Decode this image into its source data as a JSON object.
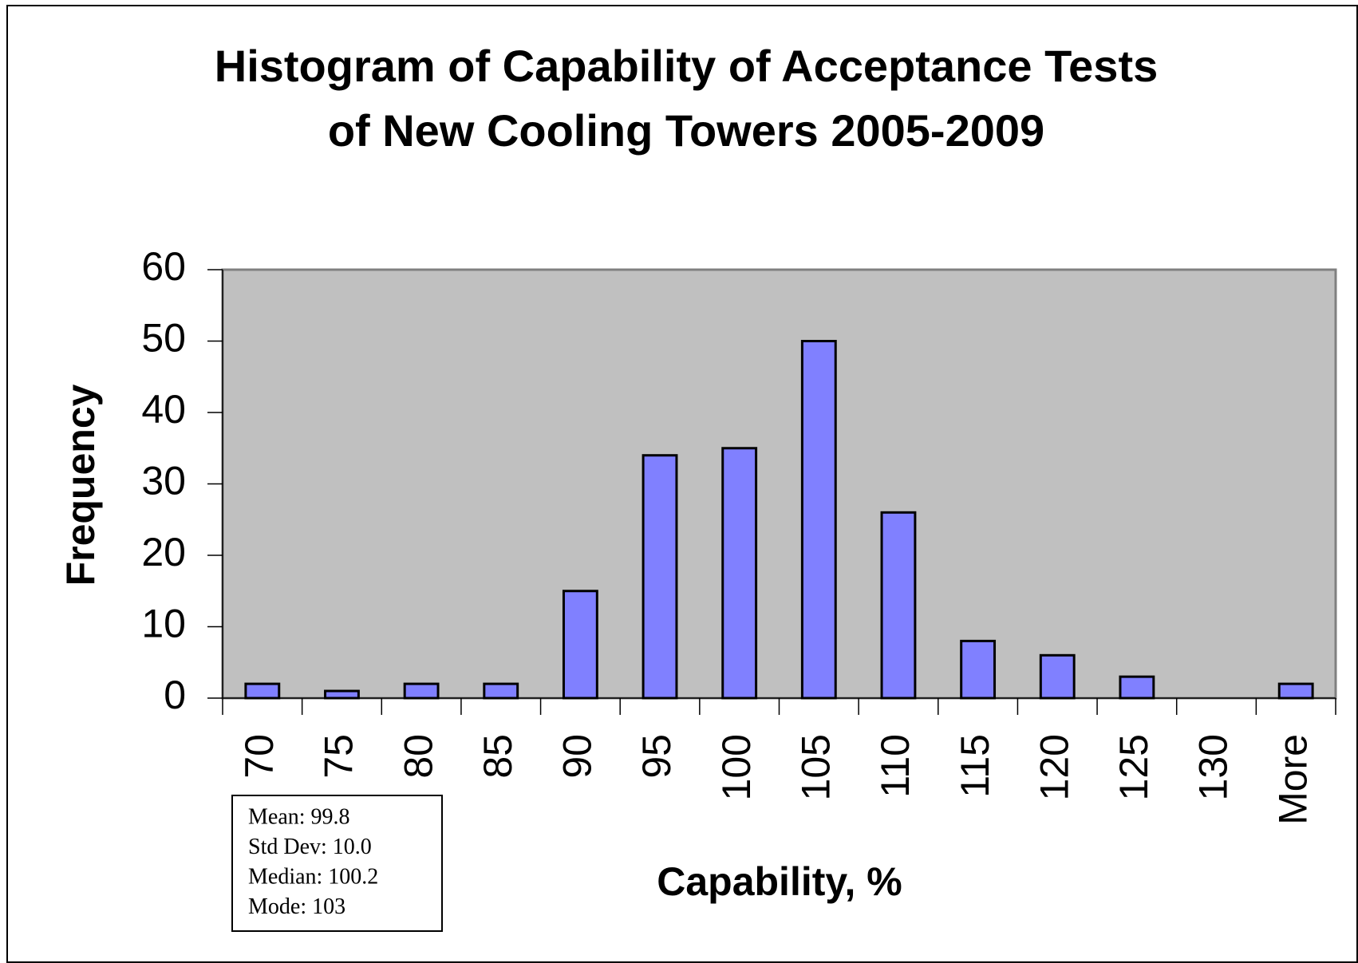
{
  "chart_data": {
    "type": "bar",
    "title": [
      "Histogram of Capability of Acceptance Tests",
      "of New Cooling Towers 2005-2009"
    ],
    "x_label": "Capability, %",
    "y_label": "Frequency",
    "categories": [
      "70",
      "75",
      "80",
      "85",
      "90",
      "95",
      "100",
      "105",
      "110",
      "115",
      "120",
      "125",
      "130",
      "More"
    ],
    "values": [
      2,
      1,
      2,
      2,
      15,
      34,
      35,
      50,
      26,
      8,
      6,
      3,
      0,
      2
    ],
    "color": "#8080ff",
    "ylim": [
      0,
      60
    ],
    "yticks": [
      0,
      10,
      20,
      30,
      40,
      50,
      60
    ],
    "grid": false,
    "annotations": [
      "Mean: 99.8",
      "Std Dev: 10.0",
      "Median: 100.2",
      "Mode: 103"
    ]
  }
}
